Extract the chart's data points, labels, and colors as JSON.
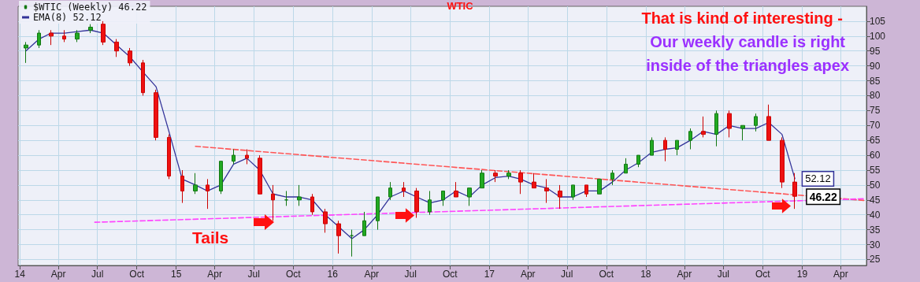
{
  "chart_data": {
    "type": "candlestick",
    "title": "WTIC",
    "x": [
      "2014-01-15",
      "2014-02-15",
      "2014-03-15",
      "2014-04-15",
      "2014-05-15",
      "2014-06-15",
      "2014-07-15",
      "2014-08-15",
      "2014-09-15",
      "2014-10-15",
      "2014-11-15",
      "2014-12-15",
      "2015-01-15",
      "2015-02-15",
      "2015-03-15",
      "2015-04-15",
      "2015-05-15",
      "2015-06-15",
      "2015-07-15",
      "2015-08-15",
      "2015-09-15",
      "2015-10-15",
      "2015-11-15",
      "2015-12-15",
      "2016-01-15",
      "2016-02-15",
      "2016-03-15",
      "2016-04-15",
      "2016-05-15",
      "2016-06-15",
      "2016-07-15",
      "2016-08-15",
      "2016-09-15",
      "2016-10-15",
      "2016-11-15",
      "2016-12-15",
      "2017-01-15",
      "2017-02-15",
      "2017-03-15",
      "2017-04-15",
      "2017-05-15",
      "2017-06-15",
      "2017-07-15",
      "2017-08-15",
      "2017-09-15",
      "2017-10-15",
      "2017-11-15",
      "2017-12-15",
      "2018-01-15",
      "2018-02-15",
      "2018-03-15",
      "2018-04-15",
      "2018-05-15",
      "2018-06-15",
      "2018-07-15",
      "2018-08-15",
      "2018-09-15",
      "2018-10-15",
      "2018-11-15",
      "2018-12-15"
    ],
    "series": [
      {
        "name": "$WTIC (Weekly) 46.22",
        "ohlc": [
          [
            96,
            98,
            91,
            97
          ],
          [
            97,
            102,
            96,
            101
          ],
          [
            101,
            102,
            97,
            100
          ],
          [
            100,
            102,
            98,
            99
          ],
          [
            99,
            102,
            98,
            101
          ],
          [
            102,
            104,
            101,
            103
          ],
          [
            104,
            105,
            97,
            98
          ],
          [
            98,
            99,
            93,
            95
          ],
          [
            95,
            96,
            90,
            91
          ],
          [
            91,
            92,
            80,
            81
          ],
          [
            81,
            82,
            65,
            66
          ],
          [
            66,
            67,
            52,
            53
          ],
          [
            53,
            55,
            44,
            48
          ],
          [
            48,
            54,
            47,
            50
          ],
          [
            50,
            52,
            42,
            48
          ],
          [
            48,
            58,
            47,
            58
          ],
          [
            58,
            62,
            57,
            60
          ],
          [
            60,
            62,
            57,
            59
          ],
          [
            59,
            60,
            47,
            47
          ],
          [
            47,
            50,
            38,
            45
          ],
          [
            45,
            48,
            43,
            45
          ],
          [
            45,
            50,
            43,
            46
          ],
          [
            46,
            47,
            40,
            41
          ],
          [
            41,
            42,
            34,
            37
          ],
          [
            37,
            38,
            27,
            33
          ],
          [
            33,
            35,
            26,
            33
          ],
          [
            33,
            41,
            33,
            38
          ],
          [
            38,
            46,
            35,
            46
          ],
          [
            46,
            51,
            45,
            49
          ],
          [
            49,
            51,
            46,
            48
          ],
          [
            48,
            49,
            39,
            41
          ],
          [
            41,
            48,
            40,
            45
          ],
          [
            45,
            48,
            43,
            48
          ],
          [
            48,
            51,
            46,
            46
          ],
          [
            46,
            49,
            43,
            49
          ],
          [
            49,
            55,
            49,
            54
          ],
          [
            54,
            55,
            51,
            53
          ],
          [
            53,
            55,
            52,
            54
          ],
          [
            54,
            55,
            47,
            51
          ],
          [
            51,
            54,
            49,
            49
          ],
          [
            49,
            52,
            44,
            48
          ],
          [
            48,
            50,
            42,
            46
          ],
          [
            46,
            50,
            45,
            50
          ],
          [
            50,
            50,
            46,
            47
          ],
          [
            47,
            52,
            47,
            52
          ],
          [
            52,
            55,
            50,
            54
          ],
          [
            54,
            59,
            54,
            57
          ],
          [
            57,
            60,
            56,
            60
          ],
          [
            60,
            66,
            60,
            65
          ],
          [
            65,
            66,
            58,
            62
          ],
          [
            62,
            65,
            60,
            65
          ],
          [
            65,
            69,
            62,
            68
          ],
          [
            68,
            73,
            66,
            67
          ],
          [
            67,
            75,
            63,
            74
          ],
          [
            74,
            75,
            66,
            69
          ],
          [
            69,
            70,
            65,
            70
          ],
          [
            70,
            74,
            68,
            73
          ],
          [
            73,
            77,
            65,
            65
          ],
          [
            65,
            66,
            49,
            51
          ],
          [
            51,
            54,
            42,
            46.22
          ]
        ],
        "value_labels": [
          null,
          null,
          null,
          null,
          null,
          null,
          null,
          null,
          null,
          null,
          null,
          null,
          null,
          null,
          null,
          null,
          null,
          null,
          null,
          null,
          null,
          null,
          null,
          null,
          null,
          null,
          null,
          null,
          null,
          null,
          null,
          null,
          null,
          null,
          null,
          null,
          null,
          null,
          null,
          null,
          null,
          null,
          null,
          null,
          null,
          null,
          null,
          null,
          null,
          null,
          null,
          null,
          null,
          null,
          null,
          null,
          null,
          null,
          null,
          "46.22"
        ]
      },
      {
        "name": "EMA(8) 52.12",
        "type": "line",
        "color": "#333399",
        "values": [
          95,
          99,
          101,
          101,
          101.5,
          102,
          101,
          97,
          93,
          88,
          83,
          68,
          52,
          50,
          48,
          50,
          57,
          59,
          55,
          47,
          46,
          46,
          45,
          40,
          36,
          32,
          35,
          40,
          46,
          48,
          46,
          44,
          45,
          48,
          46,
          50,
          52.5,
          53,
          52,
          50,
          49,
          46,
          46,
          48,
          48,
          51,
          55,
          57.5,
          61,
          62,
          62.5,
          65,
          68,
          67,
          70,
          69,
          69,
          71,
          67,
          52.12
        ],
        "value_labels": [
          null,
          null,
          null,
          null,
          null,
          null,
          null,
          null,
          null,
          null,
          null,
          null,
          null,
          null,
          null,
          null,
          null,
          null,
          null,
          null,
          null,
          null,
          null,
          null,
          null,
          null,
          null,
          null,
          null,
          null,
          null,
          null,
          null,
          null,
          null,
          null,
          null,
          null,
          null,
          null,
          null,
          null,
          null,
          null,
          null,
          null,
          null,
          null,
          null,
          null,
          null,
          null,
          null,
          null,
          null,
          null,
          null,
          null,
          null,
          "52.12"
        ]
      },
      {
        "type": "line",
        "color": "#ff5555",
        "line_style": "dashed",
        "x": [
          "2015-02-15",
          "2019-05-28"
        ],
        "values": [
          63,
          44.8
        ]
      },
      {
        "type": "line",
        "color": "#ff44ff",
        "line_style": "dashed",
        "x": [
          "2014-06-25",
          "2019-05-28"
        ],
        "values": [
          37.5,
          45.4
        ]
      }
    ],
    "xlim": [
      "2013-12-28",
      "2019-05-31"
    ],
    "xticks": [
      {
        "value": "2014-01-01",
        "label": "14"
      },
      {
        "value": "2014-04-01",
        "label": "Apr"
      },
      {
        "value": "2014-07-01",
        "label": "Jul"
      },
      {
        "value": "2014-10-01",
        "label": "Oct"
      },
      {
        "value": "2015-01-01",
        "label": "15"
      },
      {
        "value": "2015-04-01",
        "label": "Apr"
      },
      {
        "value": "2015-07-01",
        "label": "Jul"
      },
      {
        "value": "2015-10-01",
        "label": "Oct"
      },
      {
        "value": "2016-01-01",
        "label": "16"
      },
      {
        "value": "2016-04-01",
        "label": "Apr"
      },
      {
        "value": "2016-07-01",
        "label": "Jul"
      },
      {
        "value": "2016-10-01",
        "label": "Oct"
      },
      {
        "value": "2017-01-01",
        "label": "17"
      },
      {
        "value": "2017-04-01",
        "label": "Apr"
      },
      {
        "value": "2017-07-01",
        "label": "Jul"
      },
      {
        "value": "2017-10-01",
        "label": "Oct"
      },
      {
        "value": "2018-01-01",
        "label": "18"
      },
      {
        "value": "2018-04-01",
        "label": "Apr"
      },
      {
        "value": "2018-07-01",
        "label": "Jul"
      },
      {
        "value": "2018-10-01",
        "label": "Oct"
      },
      {
        "value": "2019-01-01",
        "label": "19"
      },
      {
        "value": "2019-04-01",
        "label": "Apr"
      }
    ],
    "ylim": [
      23,
      110
    ],
    "yticks": [
      25,
      30,
      35,
      40,
      45,
      50,
      55,
      60,
      65,
      70,
      75,
      80,
      85,
      90,
      95,
      100,
      105
    ],
    "grid": true,
    "legend": "top left",
    "marker": "none",
    "annotations": [
      "That is kind of interesting -",
      "Our weekly candle is right\ninside of the triangles apex",
      "Tails"
    ]
  }
}
